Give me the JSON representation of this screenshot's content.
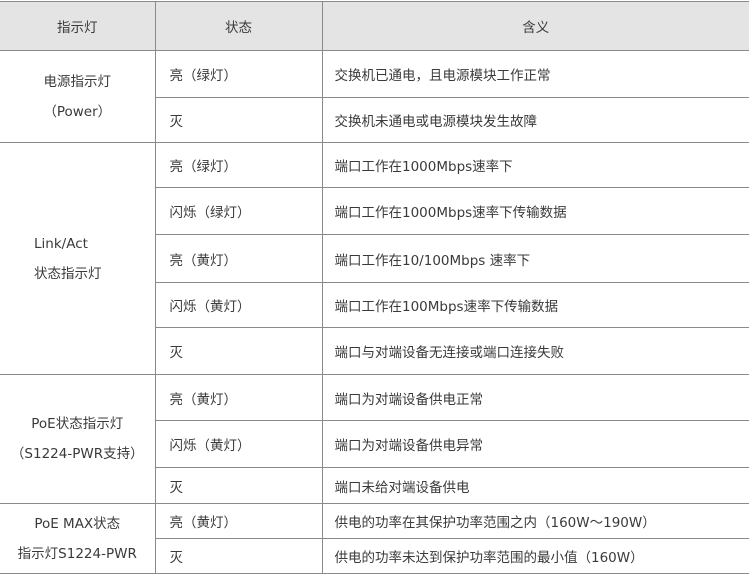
{
  "headers": [
    "指示灯",
    "状态",
    "含义"
  ],
  "groups": [
    {
      "indicator": [
        "电源指示灯",
        "（Power）"
      ],
      "rows": [
        {
          "state": "亮（绿灯）",
          "meaning": "交换机已通电，且电源模块工作正常"
        },
        {
          "state": "灭",
          "meaning": "交换机未通电或电源模块发生故障"
        }
      ]
    },
    {
      "indicator": [
        "Link/Act",
        "状态指示灯"
      ],
      "rows": [
        {
          "state": "亮（绿灯）",
          "meaning": "端口工作在1000Mbps速率下"
        },
        {
          "state": "闪烁（绿灯）",
          "meaning": "端口工作在1000Mbps速率下传输数据"
        },
        {
          "state": "亮（黄灯）",
          "meaning": "端口工作在10/100Mbps 速率下"
        },
        {
          "state": "闪烁（黄灯）",
          "meaning": "端口工作在100Mbps速率下传输数据"
        },
        {
          "state": "灭",
          "meaning": "端口与对端设备无连接或端口连接失败"
        }
      ]
    },
    {
      "indicator": [
        "PoE状态指示灯",
        "（S1224-PWR支持）"
      ],
      "rows": [
        {
          "state": "亮（黄灯）",
          "meaning": "端口为对端设备供电正常"
        },
        {
          "state": "闪烁（黄灯）",
          "meaning": "端口为对端设备供电异常"
        },
        {
          "state": "灭",
          "meaning": "端口未给对端设备供电"
        }
      ]
    },
    {
      "indicator": [
        "PoE MAX状态",
        "指示灯S1224-PWR"
      ],
      "rows": [
        {
          "state": "亮（黄灯）",
          "meaning": "供电的功率在其保护功率范围之内（160W～190W）"
        },
        {
          "state": "灭",
          "meaning": "供电的功率未达到保护功率范围的最小值（160W）"
        }
      ]
    }
  ]
}
